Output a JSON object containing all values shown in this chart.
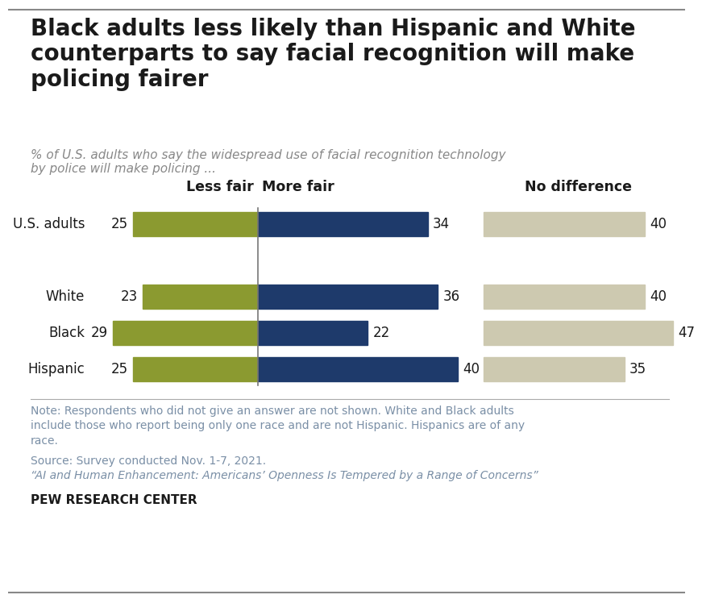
{
  "title": "Black adults less likely than Hispanic and White\ncounterparts to say facial recognition will make\npolicing fairer",
  "subtitle": "% of U.S. adults who say the widespread use of facial recognition technology\nby police will make policing ...",
  "categories": [
    "U.S. adults",
    "White",
    "Black",
    "Hispanic"
  ],
  "less_fair": [
    25,
    23,
    29,
    25
  ],
  "more_fair": [
    34,
    36,
    22,
    40
  ],
  "no_difference": [
    40,
    40,
    47,
    35
  ],
  "color_less_fair": "#8b9a30",
  "color_more_fair": "#1e3a6b",
  "color_no_diff": "#cdc9b0",
  "col_labels": [
    "Less fair",
    "More fair",
    "No difference"
  ],
  "note": "Note: Respondents who did not give an answer are not shown. White and Black adults\ninclude those who report being only one race and are not Hispanic. Hispanics are of any\nrace.",
  "source": "Source: Survey conducted Nov. 1-7, 2021.",
  "citation": "“AI and Human Enhancement: Americans’ Openness Is Tempered by a Range of Concerns”",
  "org": "PEW RESEARCH CENTER",
  "background_color": "#ffffff",
  "footer_color": "#7a8fa6",
  "title_color": "#1a1a1a",
  "subtitle_color": "#888888"
}
